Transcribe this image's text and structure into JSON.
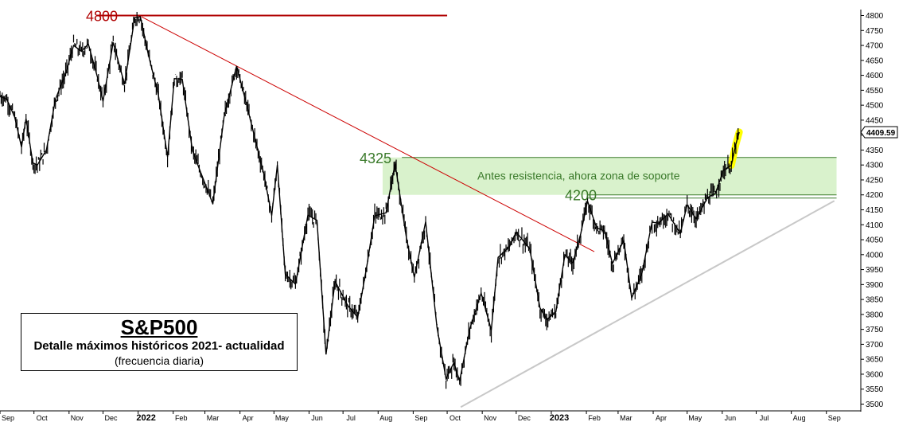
{
  "chart_data": {
    "type": "line",
    "title": "S&P500",
    "subtitle": "Detalle máximos históricos 2021- actualidad",
    "note": "(frecuencia diaria)",
    "y_ticks": [
      4800,
      4750,
      4700,
      4650,
      4600,
      4550,
      4500,
      4450,
      4400,
      4350,
      4300,
      4250,
      4200,
      4150,
      4100,
      4050,
      4000,
      3950,
      3900,
      3850,
      3800,
      3750,
      3700,
      3650,
      3600,
      3550,
      3500
    ],
    "x_ticks": [
      "Sep",
      "Oct",
      "Nov",
      "Dec",
      "2022",
      "Feb",
      "Mar",
      "Apr",
      "May",
      "Jun",
      "Jul",
      "Aug",
      "Sep",
      "Oct",
      "Nov",
      "Dec",
      "2023",
      "Feb",
      "Mar",
      "Apr",
      "May",
      "Jun",
      "Jul",
      "Aug",
      "Sep"
    ],
    "bold_ticks": [
      "2022",
      "2023"
    ],
    "ylim": [
      3480,
      4820
    ],
    "x_start": "2021-09-01",
    "x_end": "2023-09-30",
    "last_value_label": "4409.59",
    "series": [
      {
        "values": [
          [
            "2021-09-01",
            4530
          ],
          [
            "2021-09-07",
            4520
          ],
          [
            "2021-09-14",
            4460
          ],
          [
            "2021-09-20",
            4360
          ],
          [
            "2021-09-24",
            4455
          ],
          [
            "2021-09-30",
            4307
          ],
          [
            "2021-10-04",
            4300
          ],
          [
            "2021-10-12",
            4350
          ],
          [
            "2021-10-20",
            4520
          ],
          [
            "2021-10-29",
            4605
          ],
          [
            "2021-11-05",
            4700
          ],
          [
            "2021-11-12",
            4680
          ],
          [
            "2021-11-18",
            4705
          ],
          [
            "2021-11-26",
            4595
          ],
          [
            "2021-12-01",
            4513
          ],
          [
            "2021-12-10",
            4710
          ],
          [
            "2021-12-20",
            4570
          ],
          [
            "2021-12-29",
            4793
          ],
          [
            "2022-01-03",
            4796
          ],
          [
            "2022-01-10",
            4670
          ],
          [
            "2022-01-19",
            4532
          ],
          [
            "2022-01-27",
            4327
          ],
          [
            "2022-02-02",
            4589
          ],
          [
            "2022-02-09",
            4587
          ],
          [
            "2022-02-18",
            4348
          ],
          [
            "2022-02-24",
            4288
          ],
          [
            "2022-03-08",
            4170
          ],
          [
            "2022-03-18",
            4463
          ],
          [
            "2022-03-29",
            4631
          ],
          [
            "2022-04-07",
            4500
          ],
          [
            "2022-04-14",
            4392
          ],
          [
            "2022-04-22",
            4271
          ],
          [
            "2022-04-29",
            4131
          ],
          [
            "2022-05-04",
            4300
          ],
          [
            "2022-05-11",
            3935
          ],
          [
            "2022-05-20",
            3901
          ],
          [
            "2022-05-31",
            4132
          ],
          [
            "2022-06-08",
            4115
          ],
          [
            "2022-06-16",
            3666
          ],
          [
            "2022-06-24",
            3911
          ],
          [
            "2022-07-05",
            3831
          ],
          [
            "2022-07-14",
            3790
          ],
          [
            "2022-07-22",
            3961
          ],
          [
            "2022-07-29",
            4130
          ],
          [
            "2022-08-08",
            4140
          ],
          [
            "2022-08-16",
            4305
          ],
          [
            "2022-08-26",
            4057
          ],
          [
            "2022-09-02",
            3924
          ],
          [
            "2022-09-12",
            4110
          ],
          [
            "2022-09-22",
            3757
          ],
          [
            "2022-09-30",
            3585
          ],
          [
            "2022-10-07",
            3639
          ],
          [
            "2022-10-12",
            3577
          ],
          [
            "2022-10-21",
            3752
          ],
          [
            "2022-10-31",
            3871
          ],
          [
            "2022-11-09",
            3748
          ],
          [
            "2022-11-15",
            3991
          ],
          [
            "2022-11-25",
            4026
          ],
          [
            "2022-12-01",
            4076
          ],
          [
            "2022-12-13",
            4019
          ],
          [
            "2022-12-22",
            3822
          ],
          [
            "2022-12-28",
            3783
          ],
          [
            "2023-01-05",
            3808
          ],
          [
            "2023-01-13",
            3999
          ],
          [
            "2023-01-20",
            3972
          ],
          [
            "2023-01-27",
            4070
          ],
          [
            "2023-02-02",
            4179
          ],
          [
            "2023-02-10",
            4090
          ],
          [
            "2023-02-17",
            4079
          ],
          [
            "2023-02-24",
            3970
          ],
          [
            "2023-03-06",
            4048
          ],
          [
            "2023-03-13",
            3855
          ],
          [
            "2023-03-22",
            3937
          ],
          [
            "2023-03-31",
            4109
          ],
          [
            "2023-04-06",
            4105
          ],
          [
            "2023-04-14",
            4137
          ],
          [
            "2023-04-25",
            4071
          ],
          [
            "2023-05-01",
            4167
          ],
          [
            "2023-05-09",
            4119
          ],
          [
            "2023-05-19",
            4191
          ],
          [
            "2023-05-26",
            4205
          ],
          [
            "2023-06-02",
            4282
          ],
          [
            "2023-06-09",
            4299
          ],
          [
            "2023-06-13",
            4369
          ],
          [
            "2023-06-16",
            4410
          ]
        ]
      }
    ],
    "annotations": {
      "resistance_label": "4800",
      "zone_top_label": "4325",
      "zone_bottom_label": "4200",
      "zone_text": "Antes resistencia, ahora zona de soporte",
      "resistance_value": 4800,
      "zone_top": 4325,
      "zone_bottom": 4200,
      "colors": {
        "resistance": "#b00000",
        "trendline": "#cc0000",
        "zone_fill": "#d9f2cc",
        "zone_text": "#3a7a2a",
        "support_line": "#c8c8c8",
        "highlight": "#ffff00",
        "price": "#000000"
      }
    }
  }
}
